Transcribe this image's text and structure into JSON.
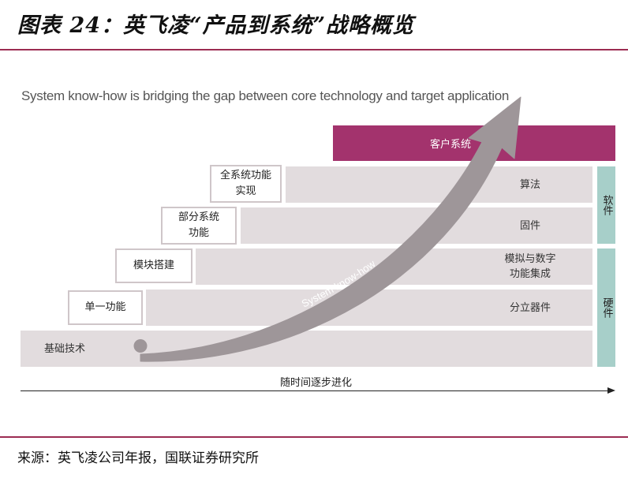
{
  "figure": {
    "title": "图表 24：英飞凌“产品到系统”战略概览",
    "source": "来源：英飞凌公司年报，国联证券研究所"
  },
  "diagram": {
    "subtitle": "System know-how is bridging the gap between core technology and target application",
    "customer_system": "客户系统",
    "bands": [
      {
        "label": "算法"
      },
      {
        "label": "固件"
      },
      {
        "label": "模拟与数字\n功能集成"
      },
      {
        "label": "分立器件"
      },
      {
        "label": "基础技术"
      }
    ],
    "steps": [
      {
        "label": "全系统功能\n实现"
      },
      {
        "label": "部分系统\n功能"
      },
      {
        "label": "模块搭建"
      },
      {
        "label": "单一功能"
      }
    ],
    "side_labels": {
      "software": "软件",
      "hardware": "硬件"
    },
    "arrow_label": "System know-how",
    "axis_label": "随时间逐步进化"
  },
  "colors": {
    "accent": "#9c2c52",
    "customer": "#a3336d",
    "band": "#e2dcde",
    "side": "#a7cfc9",
    "arrow": "#9e9699"
  }
}
